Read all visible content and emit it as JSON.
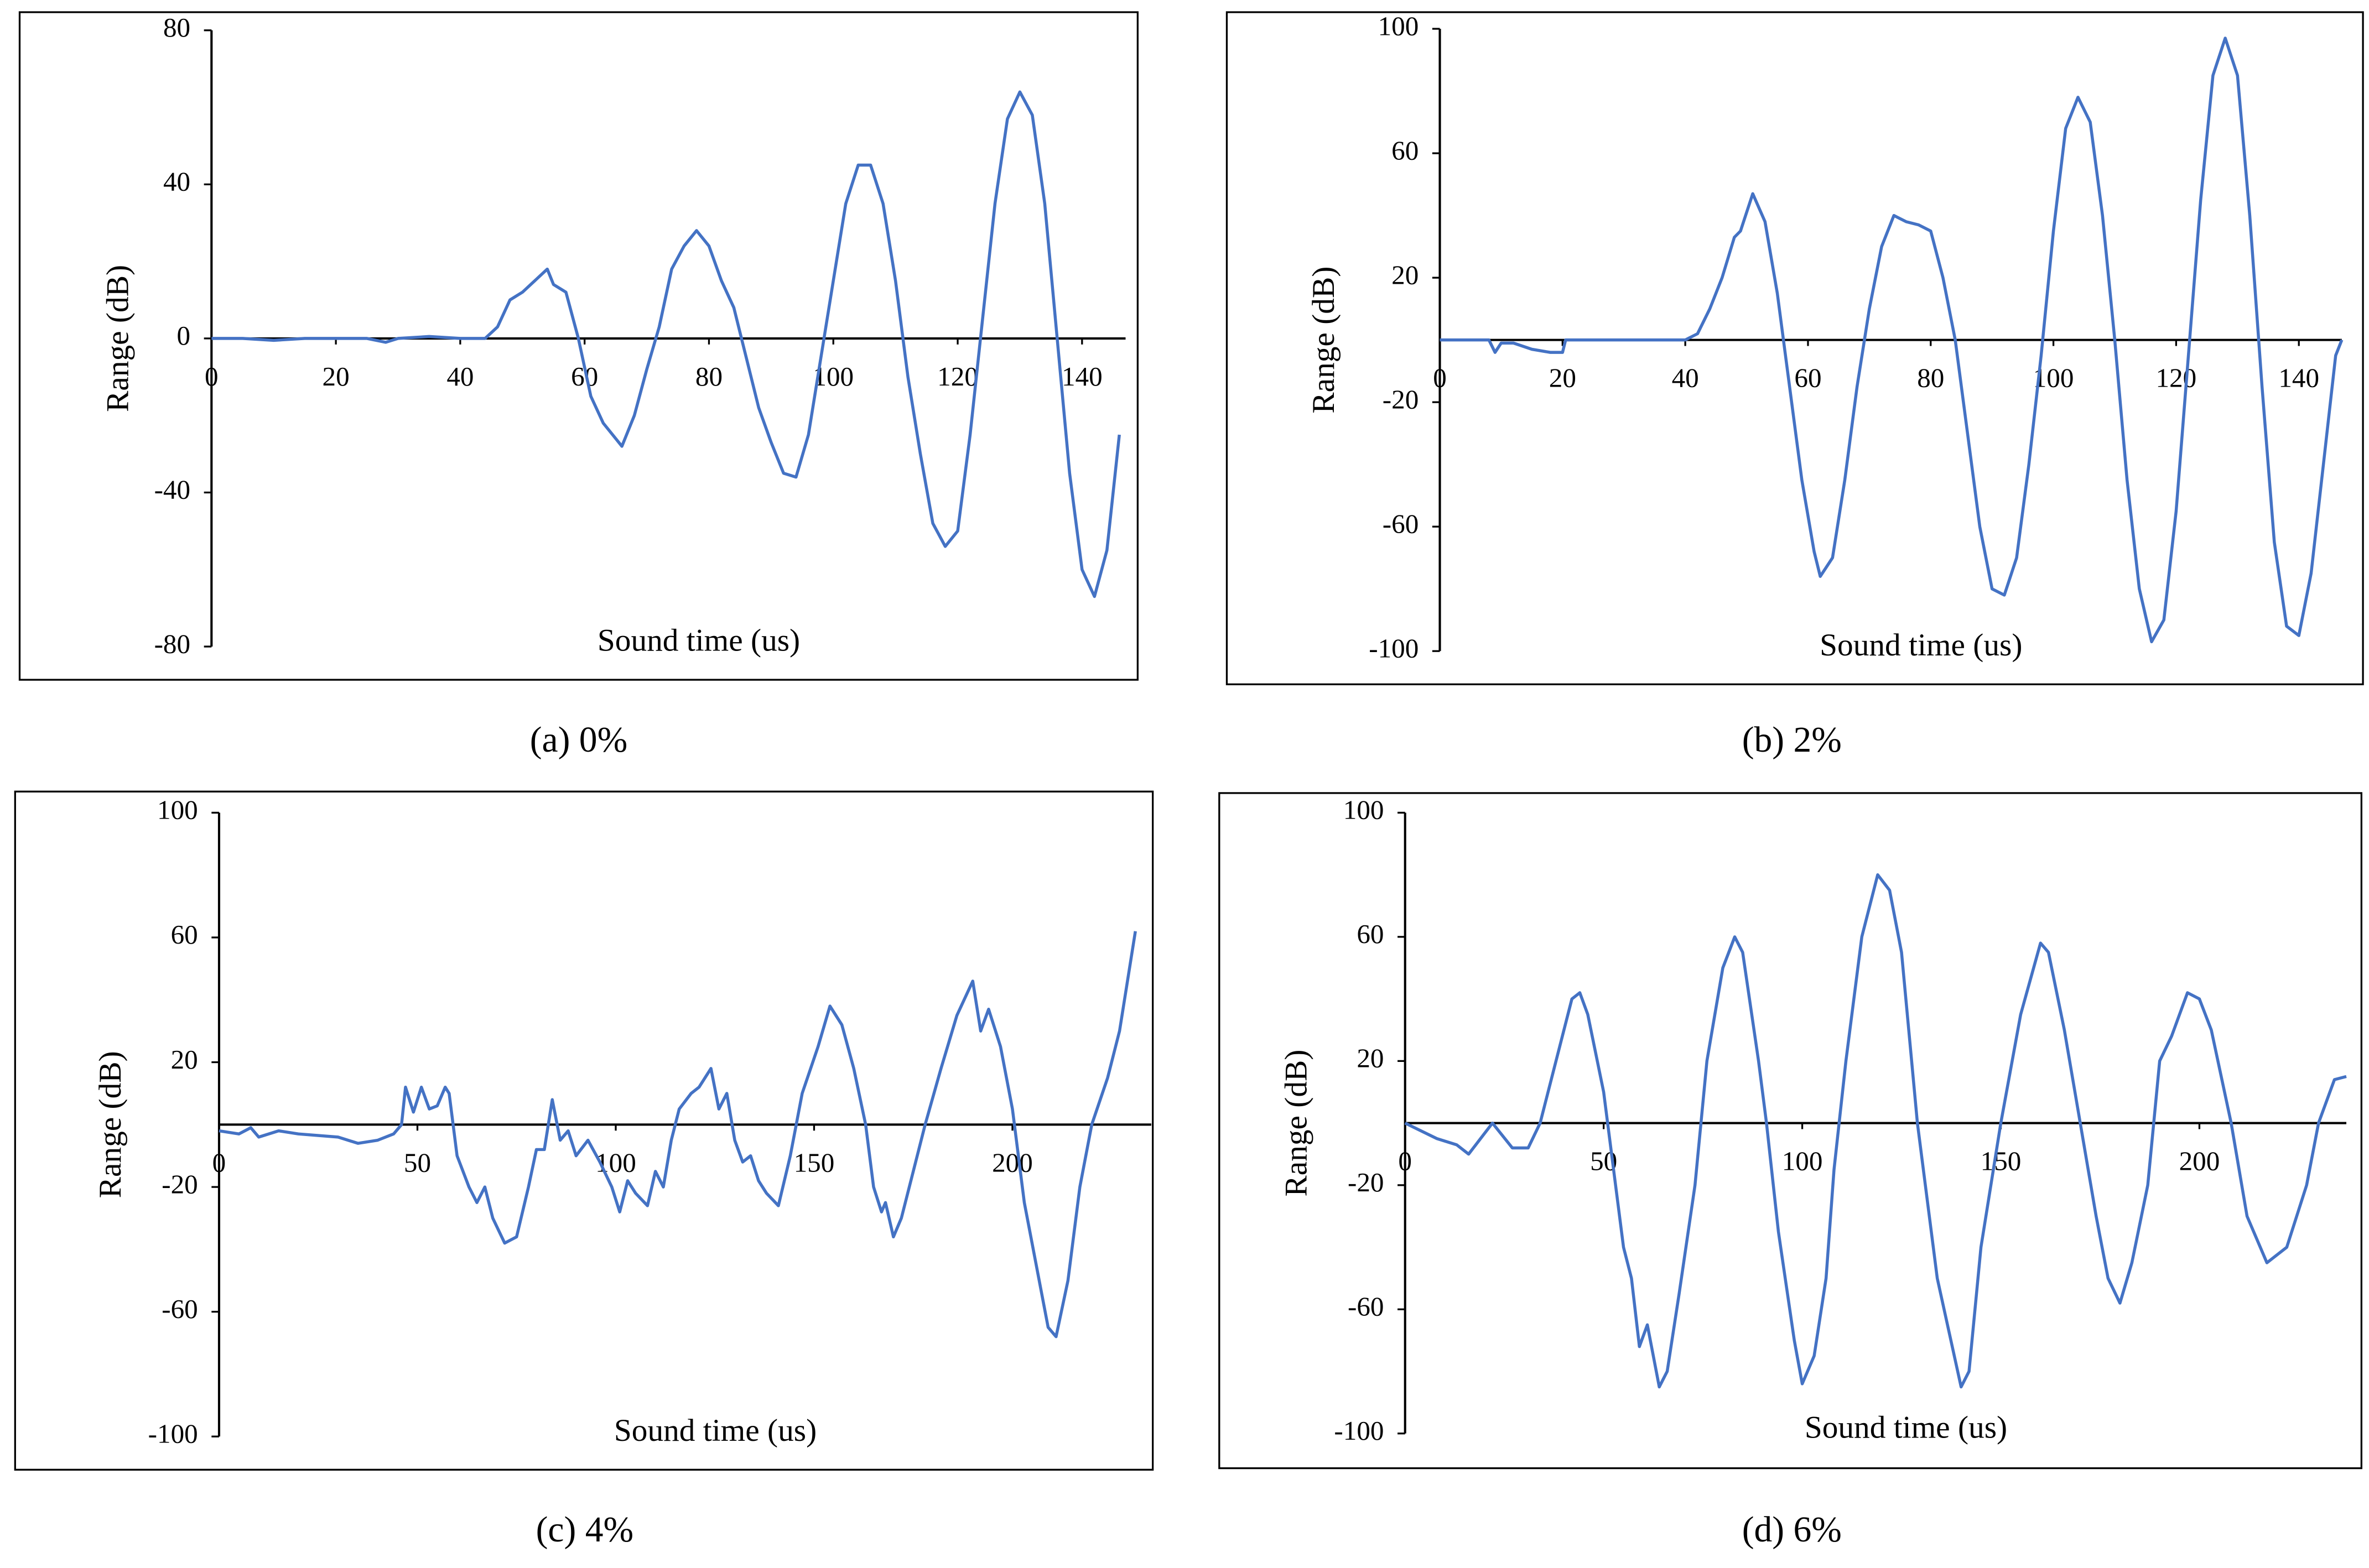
{
  "chart_data": [
    {
      "type": "line",
      "caption": "(a) 0%",
      "xlabel": "Sound time (us)",
      "ylabel": "Range (dB)",
      "color": "#4472c4",
      "xlim": [
        0,
        147
      ],
      "xticks": [
        0,
        20,
        40,
        60,
        80,
        100,
        120,
        140
      ],
      "ylim": [
        -80,
        80
      ],
      "yticks": [
        -80,
        -40,
        0,
        40,
        80
      ],
      "x": [
        0,
        5,
        10,
        15,
        20,
        25,
        28,
        30,
        35,
        40,
        44,
        46,
        48,
        50,
        52,
        54,
        55,
        57,
        59,
        61,
        63,
        65,
        66,
        68,
        70,
        72,
        74,
        76,
        78,
        80,
        82,
        84,
        86,
        88,
        90,
        92,
        94,
        96,
        98,
        100,
        102,
        104,
        106,
        108,
        110,
        112,
        114,
        116,
        118,
        120,
        122,
        124,
        126,
        128,
        130,
        132,
        134,
        136,
        138,
        140,
        142,
        144,
        146
      ],
      "values": [
        0,
        0,
        -0.5,
        0,
        0,
        0,
        -1,
        0,
        0.5,
        0,
        0,
        3,
        10,
        12,
        15,
        18,
        14,
        12,
        0,
        -15,
        -22,
        -26,
        -28,
        -20,
        -8,
        3,
        18,
        24,
        28,
        24,
        15,
        8,
        -5,
        -18,
        -27,
        -35,
        -36,
        -25,
        -5,
        15,
        35,
        45,
        45,
        35,
        15,
        -10,
        -30,
        -48,
        -54,
        -50,
        -25,
        5,
        35,
        57,
        64,
        58,
        35,
        0,
        -35,
        -60,
        -67,
        -55,
        -25
      ]
    },
    {
      "type": "line",
      "caption": "(b) 2%",
      "xlabel": "Sound time (us)",
      "ylabel": "Range (dB)",
      "color": "#4472c4",
      "xlim": [
        0,
        147
      ],
      "xticks": [
        0,
        20,
        40,
        60,
        80,
        100,
        120,
        140
      ],
      "ylim": [
        -100,
        100
      ],
      "yticks": [
        -100,
        -60,
        -20,
        20,
        60,
        100
      ],
      "x": [
        0,
        8,
        9,
        10,
        12,
        15,
        18,
        20,
        20.5,
        40,
        42,
        44,
        46,
        48,
        49,
        51,
        53,
        55,
        57,
        59,
        61,
        62,
        64,
        66,
        68,
        70,
        72,
        74,
        76,
        78,
        80,
        82,
        84,
        86,
        88,
        90,
        92,
        94,
        96,
        98,
        100,
        102,
        104,
        106,
        108,
        110,
        112,
        114,
        116,
        118,
        120,
        122,
        124,
        126,
        128,
        130,
        132,
        134,
        136,
        138,
        140,
        142,
        144,
        146,
        147
      ],
      "values": [
        0,
        0,
        -4,
        -1,
        -1,
        -3,
        -4,
        -4,
        0,
        0,
        2,
        10,
        20,
        33,
        35,
        47,
        38,
        15,
        -15,
        -45,
        -68,
        -76,
        -70,
        -45,
        -15,
        10,
        30,
        40,
        38,
        37,
        35,
        20,
        0,
        -30,
        -60,
        -80,
        -82,
        -70,
        -40,
        -5,
        35,
        68,
        78,
        70,
        40,
        0,
        -45,
        -80,
        -97,
        -90,
        -55,
        -5,
        45,
        85,
        97,
        85,
        40,
        -15,
        -65,
        -92,
        -95,
        -75,
        -40,
        -5,
        0
      ]
    },
    {
      "type": "line",
      "caption": "(c) 4%",
      "xlabel": "Sound time (us)",
      "ylabel": "Range (dB)",
      "color": "#4472c4",
      "xlim": [
        0,
        235
      ],
      "xticks": [
        0,
        50,
        100,
        150,
        200
      ],
      "ylim": [
        -100,
        100
      ],
      "yticks": [
        -100,
        -60,
        -20,
        20,
        60,
        100
      ],
      "x": [
        0,
        5,
        8,
        10,
        15,
        20,
        30,
        35,
        40,
        44,
        46,
        47,
        49,
        51,
        53,
        55,
        57,
        58,
        60,
        63,
        65,
        67,
        69,
        72,
        75,
        78,
        80,
        82,
        84,
        86,
        88,
        90,
        93,
        96,
        99,
        101,
        103,
        105,
        108,
        110,
        112,
        114,
        116,
        119,
        121,
        124,
        126,
        128,
        130,
        132,
        134,
        136,
        138,
        141,
        144,
        147,
        151,
        154,
        157,
        160,
        163,
        165,
        167,
        168,
        170,
        172,
        175,
        178,
        182,
        186,
        190,
        192,
        194,
        197,
        200,
        203,
        206,
        209,
        211,
        214,
        217,
        220,
        224,
        227,
        231
      ],
      "values": [
        -2,
        -3,
        -1,
        -4,
        -2,
        -3,
        -4,
        -6,
        -5,
        -3,
        0,
        12,
        4,
        12,
        5,
        6,
        12,
        10,
        -10,
        -20,
        -25,
        -20,
        -30,
        -38,
        -36,
        -20,
        -8,
        -8,
        8,
        -5,
        -2,
        -10,
        -5,
        -12,
        -20,
        -28,
        -18,
        -22,
        -26,
        -15,
        -20,
        -5,
        5,
        10,
        12,
        18,
        5,
        10,
        -5,
        -12,
        -10,
        -18,
        -22,
        -26,
        -10,
        10,
        25,
        38,
        32,
        18,
        0,
        -20,
        -28,
        -25,
        -36,
        -30,
        -15,
        0,
        18,
        35,
        46,
        30,
        37,
        25,
        5,
        -25,
        -45,
        -65,
        -68,
        -50,
        -20,
        0,
        15,
        30,
        62
      ]
    },
    {
      "type": "line",
      "caption": "(d) 6%",
      "xlabel": "Sound time (us)",
      "ylabel": "Range (dB)",
      "color": "#4472c4",
      "xlim": [
        0,
        237
      ],
      "xticks": [
        0,
        50,
        100,
        150,
        200
      ],
      "ylim": [
        -100,
        100
      ],
      "yticks": [
        -100,
        -60,
        -20,
        20,
        60,
        100
      ],
      "x": [
        0,
        8,
        13,
        16,
        22,
        27,
        31,
        34,
        38,
        42,
        44,
        46,
        50,
        53,
        55,
        57,
        59,
        61,
        64,
        66,
        69,
        73,
        76,
        80,
        83,
        85,
        89,
        91,
        94,
        98,
        100,
        103,
        106,
        108,
        111,
        115,
        119,
        122,
        125,
        129,
        134,
        140,
        142,
        145,
        150,
        155,
        160,
        162,
        166,
        170,
        174,
        177,
        180,
        183,
        187,
        190,
        193,
        197,
        200,
        203,
        208,
        212,
        217,
        222,
        227,
        230,
        234,
        237
      ],
      "values": [
        0,
        -5,
        -7,
        -10,
        0,
        -8,
        -8,
        0,
        20,
        40,
        42,
        35,
        10,
        -20,
        -40,
        -50,
        -72,
        -65,
        -85,
        -80,
        -55,
        -20,
        20,
        50,
        60,
        55,
        20,
        0,
        -35,
        -70,
        -84,
        -75,
        -50,
        -15,
        20,
        60,
        80,
        75,
        55,
        0,
        -50,
        -85,
        -80,
        -40,
        0,
        35,
        58,
        55,
        30,
        0,
        -30,
        -50,
        -58,
        -45,
        -20,
        20,
        28,
        42,
        40,
        30,
        0,
        -30,
        -45,
        -40,
        -20,
        0,
        14,
        15
      ]
    }
  ]
}
